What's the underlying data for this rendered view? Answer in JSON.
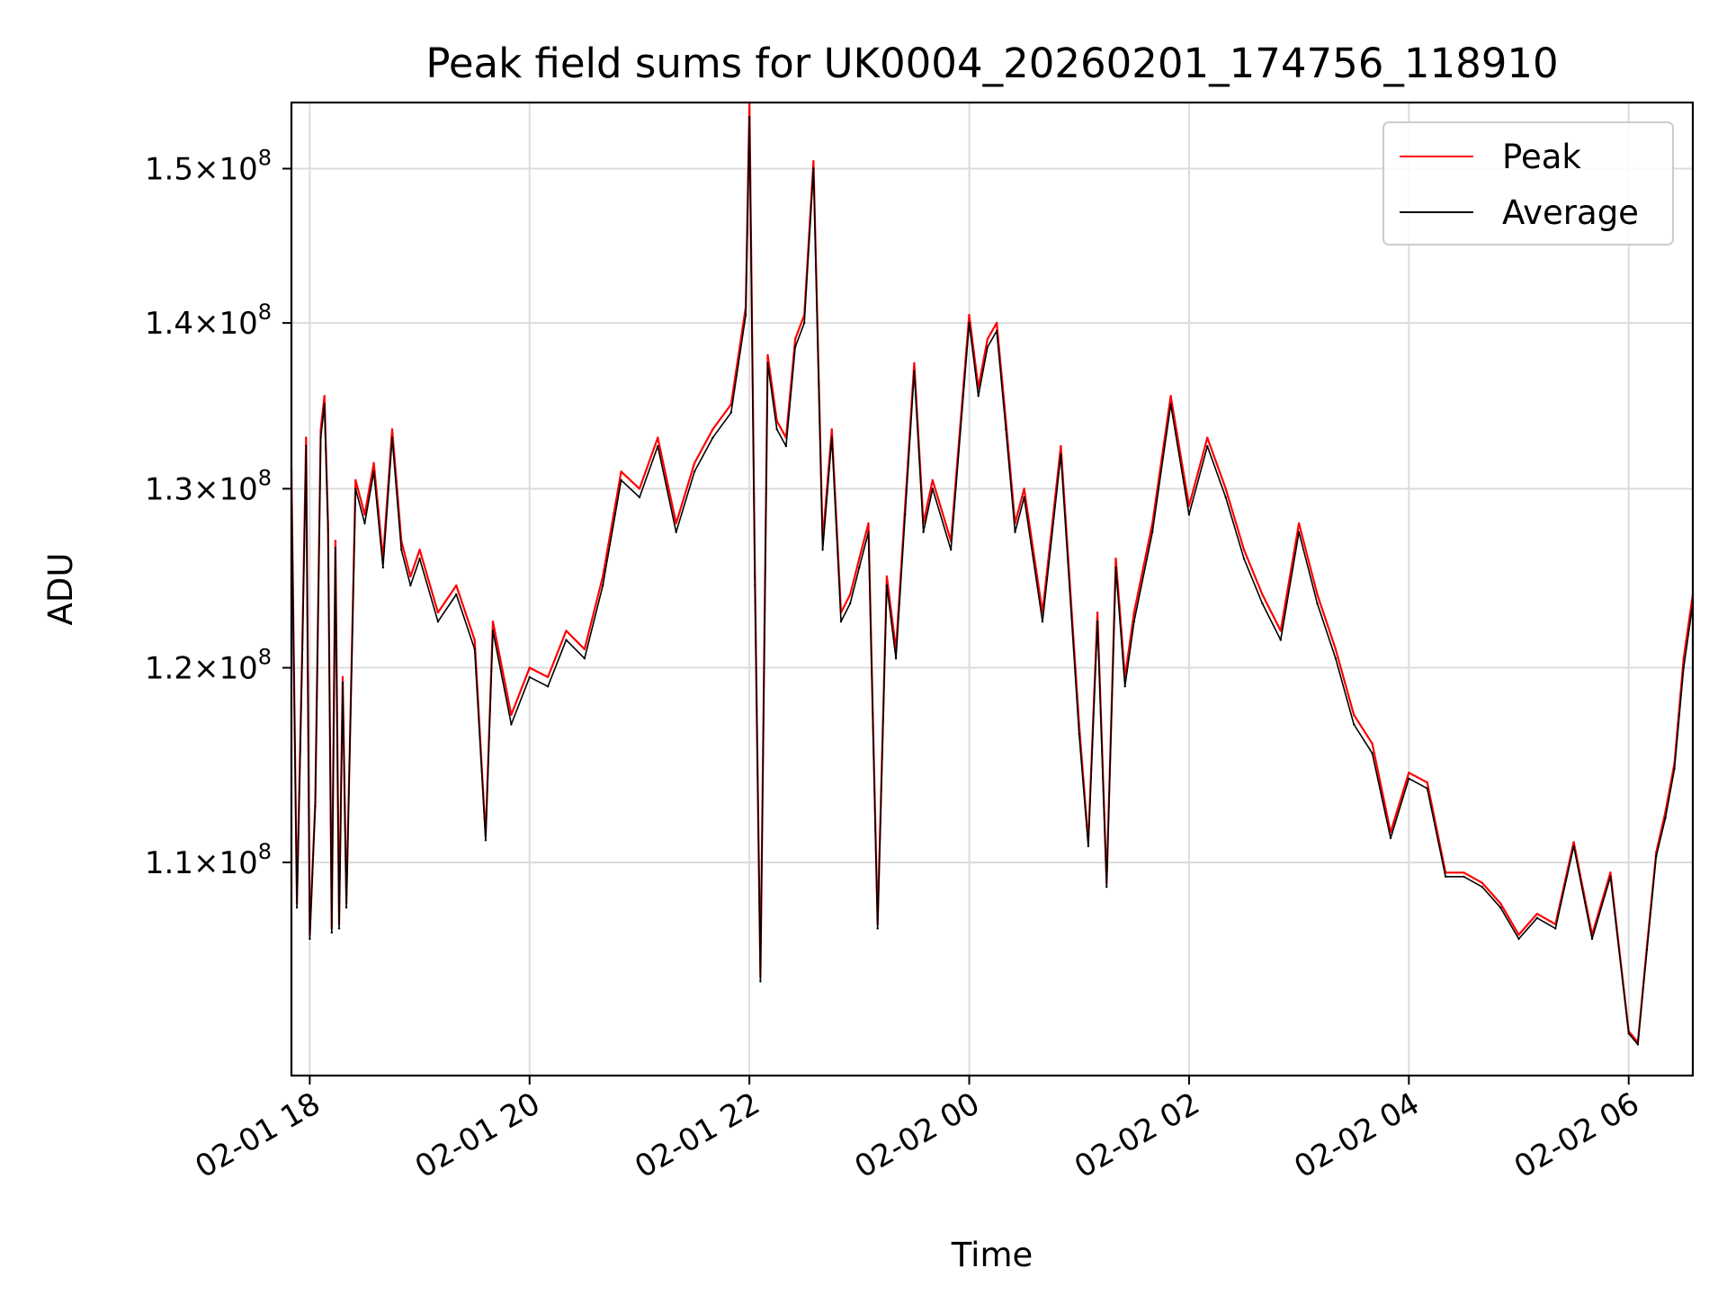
{
  "chart_data": {
    "type": "line",
    "title": "Peak field sums for UK0004_20260201_174756_118910",
    "xlabel": "Time",
    "ylabel": "ADU",
    "y_scale": "log",
    "grid": true,
    "legend_position": "top-right",
    "xlim": [
      "2026-02-01 17:50",
      "2026-02-02 06:35"
    ],
    "ylim": [
      100000000,
      154500000
    ],
    "x_ticks": [
      {
        "value": "2026-02-01 18:00",
        "label": "02-01 18"
      },
      {
        "value": "2026-02-01 20:00",
        "label": "02-01 20"
      },
      {
        "value": "2026-02-01 22:00",
        "label": "02-01 22"
      },
      {
        "value": "2026-02-02 00:00",
        "label": "02-02 00"
      },
      {
        "value": "2026-02-02 02:00",
        "label": "02-02 02"
      },
      {
        "value": "2026-02-02 04:00",
        "label": "02-02 04"
      },
      {
        "value": "2026-02-02 06:00",
        "label": "02-02 06"
      }
    ],
    "y_ticks": [
      {
        "value": 110000000,
        "base": "1.1",
        "exponent": "8"
      },
      {
        "value": 120000000,
        "base": "1.2",
        "exponent": "8"
      },
      {
        "value": 130000000,
        "base": "1.3",
        "exponent": "8"
      },
      {
        "value": 140000000,
        "base": "1.4",
        "exponent": "8"
      },
      {
        "value": 150000000,
        "base": "1.5",
        "exponent": "8"
      }
    ],
    "series_style": [
      {
        "name": "Peak",
        "color": "#ff0000"
      },
      {
        "name": "Average",
        "color": "#000000"
      }
    ],
    "x": [
      "2026-02-01 17:50",
      "2026-02-01 17:53",
      "2026-02-01 17:56",
      "2026-02-01 17:58",
      "2026-02-01 18:00",
      "2026-02-01 18:03",
      "2026-02-01 18:06",
      "2026-02-01 18:08",
      "2026-02-01 18:10",
      "2026-02-01 18:12",
      "2026-02-01 18:14",
      "2026-02-01 18:16",
      "2026-02-01 18:18",
      "2026-02-01 18:20",
      "2026-02-01 18:25",
      "2026-02-01 18:30",
      "2026-02-01 18:35",
      "2026-02-01 18:40",
      "2026-02-01 18:45",
      "2026-02-01 18:50",
      "2026-02-01 18:55",
      "2026-02-01 19:00",
      "2026-02-01 19:10",
      "2026-02-01 19:20",
      "2026-02-01 19:30",
      "2026-02-01 19:36",
      "2026-02-01 19:40",
      "2026-02-01 19:50",
      "2026-02-01 20:00",
      "2026-02-01 20:10",
      "2026-02-01 20:20",
      "2026-02-01 20:30",
      "2026-02-01 20:40",
      "2026-02-01 20:50",
      "2026-02-01 21:00",
      "2026-02-01 21:10",
      "2026-02-01 21:20",
      "2026-02-01 21:30",
      "2026-02-01 21:40",
      "2026-02-01 21:50",
      "2026-02-01 21:58",
      "2026-02-01 22:00",
      "2026-02-01 22:03",
      "2026-02-01 22:06",
      "2026-02-01 22:10",
      "2026-02-01 22:15",
      "2026-02-01 22:20",
      "2026-02-01 22:25",
      "2026-02-01 22:30",
      "2026-02-01 22:35",
      "2026-02-01 22:40",
      "2026-02-01 22:45",
      "2026-02-01 22:50",
      "2026-02-01 22:55",
      "2026-02-01 23:00",
      "2026-02-01 23:05",
      "2026-02-01 23:10",
      "2026-02-01 23:15",
      "2026-02-01 23:20",
      "2026-02-01 23:25",
      "2026-02-01 23:30",
      "2026-02-01 23:35",
      "2026-02-01 23:40",
      "2026-02-01 23:50",
      "2026-02-02 00:00",
      "2026-02-02 00:05",
      "2026-02-02 00:10",
      "2026-02-02 00:15",
      "2026-02-02 00:20",
      "2026-02-02 00:25",
      "2026-02-02 00:30",
      "2026-02-02 00:40",
      "2026-02-02 00:50",
      "2026-02-02 01:00",
      "2026-02-02 01:05",
      "2026-02-02 01:10",
      "2026-02-02 01:15",
      "2026-02-02 01:20",
      "2026-02-02 01:25",
      "2026-02-02 01:30",
      "2026-02-02 01:40",
      "2026-02-02 01:50",
      "2026-02-02 02:00",
      "2026-02-02 02:10",
      "2026-02-02 02:20",
      "2026-02-02 02:30",
      "2026-02-02 02:40",
      "2026-02-02 02:50",
      "2026-02-02 03:00",
      "2026-02-02 03:10",
      "2026-02-02 03:20",
      "2026-02-02 03:30",
      "2026-02-02 03:40",
      "2026-02-02 03:50",
      "2026-02-02 04:00",
      "2026-02-02 04:10",
      "2026-02-02 04:20",
      "2026-02-02 04:30",
      "2026-02-02 04:40",
      "2026-02-02 04:50",
      "2026-02-02 05:00",
      "2026-02-02 05:10",
      "2026-02-02 05:20",
      "2026-02-02 05:30",
      "2026-02-02 05:40",
      "2026-02-02 05:50",
      "2026-02-02 06:00",
      "2026-02-02 06:05",
      "2026-02-02 06:10",
      "2026-02-02 06:15",
      "2026-02-02 06:20",
      "2026-02-02 06:25",
      "2026-02-02 06:30",
      "2026-02-02 06:35"
    ],
    "series": [
      {
        "name": "Peak",
        "values": [
          131200000,
          108000000,
          121500000,
          133000000,
          106500000,
          113000000,
          133500000,
          135500000,
          128000000,
          106800000,
          127000000,
          107000000,
          119500000,
          108000000,
          130500000,
          128500000,
          131500000,
          126000000,
          133500000,
          127000000,
          125000000,
          126500000,
          123000000,
          124500000,
          121500000,
          111300000,
          122500000,
          117500000,
          120000000,
          119500000,
          122000000,
          121000000,
          125000000,
          131000000,
          130000000,
          133000000,
          128000000,
          131500000,
          133500000,
          135000000,
          141000000,
          154500000,
          125000000,
          104500000,
          138000000,
          134000000,
          133000000,
          139000000,
          140500000,
          150500000,
          127000000,
          133500000,
          123000000,
          124000000,
          126000000,
          128000000,
          107000000,
          125000000,
          121000000,
          129000000,
          137500000,
          128000000,
          130500000,
          127000000,
          140500000,
          136000000,
          139000000,
          140000000,
          134000000,
          128000000,
          130000000,
          123000000,
          132500000,
          117000000,
          111000000,
          123000000,
          109000000,
          126000000,
          119500000,
          123000000,
          128000000,
          135500000,
          129000000,
          133000000,
          130000000,
          126500000,
          124000000,
          122000000,
          128000000,
          124000000,
          121000000,
          117500000,
          116000000,
          111500000,
          114500000,
          114000000,
          109500000,
          109500000,
          109000000,
          108000000,
          106500000,
          107500000,
          107000000,
          111000000,
          106500000,
          109500000,
          102000000,
          101500000,
          106000000,
          110500000,
          112500000,
          115000000,
          120500000,
          124000000
        ]
      },
      {
        "name": "Average",
        "values": [
          130800000,
          107800000,
          121000000,
          132500000,
          106300000,
          112800000,
          133000000,
          135000000,
          127600000,
          106600000,
          126600000,
          106800000,
          119200000,
          107800000,
          130000000,
          128000000,
          131000000,
          125500000,
          133000000,
          126500000,
          124500000,
          126000000,
          122500000,
          124000000,
          121000000,
          111100000,
          122000000,
          117000000,
          119500000,
          119000000,
          121500000,
          120500000,
          124500000,
          130500000,
          129500000,
          132500000,
          127500000,
          131000000,
          133000000,
          134500000,
          140500000,
          153500000,
          124500000,
          104300000,
          137500000,
          133500000,
          132500000,
          138500000,
          140000000,
          150000000,
          126500000,
          133000000,
          122500000,
          123500000,
          125500000,
          127500000,
          106800000,
          124500000,
          120500000,
          128500000,
          137000000,
          127500000,
          130000000,
          126500000,
          140000000,
          135500000,
          138500000,
          139500000,
          133500000,
          127500000,
          129500000,
          122500000,
          132000000,
          116500000,
          110800000,
          122500000,
          108800000,
          125500000,
          119000000,
          122500000,
          127500000,
          135000000,
          128500000,
          132500000,
          129500000,
          126000000,
          123500000,
          121500000,
          127500000,
          123500000,
          120500000,
          117000000,
          115500000,
          111200000,
          114200000,
          113700000,
          109300000,
          109300000,
          108800000,
          107800000,
          106300000,
          107300000,
          106800000,
          110800000,
          106300000,
          109300000,
          101900000,
          101400000,
          105800000,
          110300000,
          112200000,
          114700000,
          120000000,
          123500000
        ]
      }
    ]
  }
}
